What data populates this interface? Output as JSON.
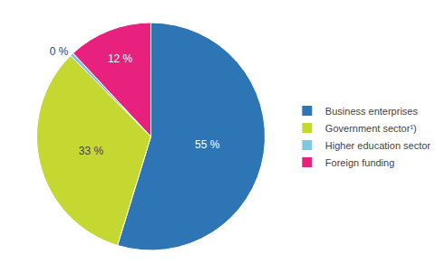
{
  "chart_data": {
    "type": "pie",
    "categories": [
      "Business enterprises",
      "Government sector¹)",
      "Higher education sector",
      "Foreign funding"
    ],
    "values": [
      55,
      33,
      0.5,
      12
    ],
    "value_labels": [
      "55 %",
      "33 %",
      "0 %",
      "12 %"
    ],
    "colors": [
      "#2E75B6",
      "#C5D832",
      "#7EC8E3",
      "#E8207E"
    ],
    "data_labels": true,
    "legend": "right"
  }
}
